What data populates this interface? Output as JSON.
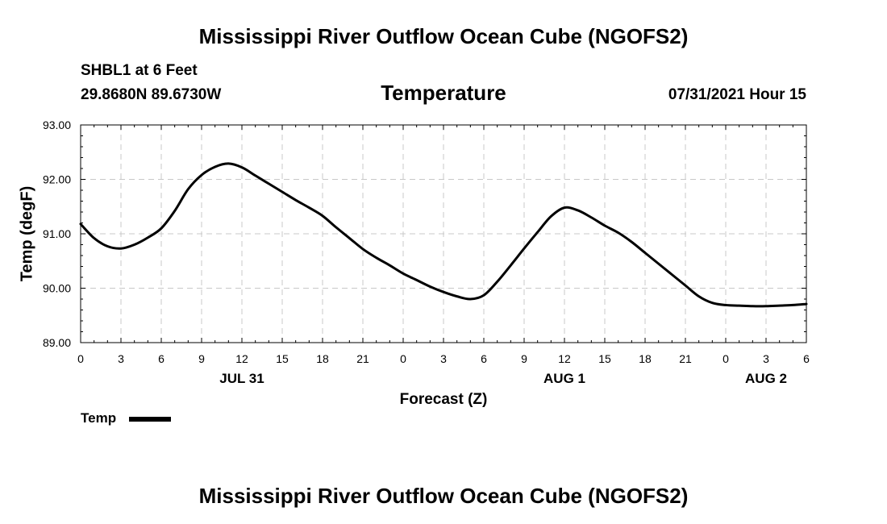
{
  "header": {
    "title": "Mississippi River Outflow Ocean Cube (NGOFS2)",
    "station": "SHBL1 at 6 Feet",
    "coordinates": "29.8680N  89.6730W",
    "subtitle": "Temperature",
    "timestamp": "07/31/2021 Hour 15"
  },
  "footer": {
    "title": "Mississippi River Outflow Ocean Cube (NGOFS2)"
  },
  "legend": {
    "label": "Temp",
    "color": "#000000"
  },
  "chart_data": {
    "type": "line",
    "title": "Temperature",
    "xlabel": "Forecast (Z)",
    "ylabel": "Temp (degF)",
    "xlim": [
      0,
      54
    ],
    "ylim": [
      89.0,
      93.0
    ],
    "grid": true,
    "x_ticks": [
      0,
      3,
      6,
      9,
      12,
      15,
      18,
      21,
      24,
      27,
      30,
      33,
      36,
      39,
      42,
      45,
      48,
      51,
      54
    ],
    "x_tick_labels": [
      "0",
      "3",
      "6",
      "9",
      "12",
      "15",
      "18",
      "21",
      "0",
      "3",
      "6",
      "9",
      "12",
      "15",
      "18",
      "21",
      "0",
      "3",
      "6"
    ],
    "y_ticks": [
      89.0,
      90.0,
      91.0,
      92.0,
      93.0
    ],
    "y_tick_labels": [
      "89.00",
      "90.00",
      "91.00",
      "92.00",
      "93.00"
    ],
    "date_labels": [
      {
        "x": 12,
        "label": "JUL 31"
      },
      {
        "x": 36,
        "label": "AUG 1"
      },
      {
        "x": 51,
        "label": "AUG 2"
      }
    ],
    "series": [
      {
        "name": "Temp",
        "color": "#000000",
        "x": [
          0,
          1,
          2,
          3,
          4,
          5,
          6,
          7,
          8,
          9,
          10,
          11,
          12,
          13,
          14,
          15,
          16,
          17,
          18,
          19,
          20,
          21,
          22,
          23,
          24,
          25,
          26,
          27,
          28,
          29,
          30,
          31,
          32,
          33,
          34,
          35,
          36,
          37,
          38,
          39,
          40,
          41,
          42,
          43,
          44,
          45,
          46,
          47,
          48,
          49,
          50,
          51,
          52,
          53,
          54
        ],
        "values": [
          91.18,
          90.92,
          90.77,
          90.73,
          90.8,
          90.93,
          91.1,
          91.42,
          91.82,
          92.08,
          92.23,
          92.29,
          92.22,
          92.07,
          91.92,
          91.77,
          91.62,
          91.48,
          91.33,
          91.12,
          90.92,
          90.72,
          90.56,
          90.42,
          90.27,
          90.15,
          90.03,
          89.93,
          89.85,
          89.8,
          89.87,
          90.12,
          90.42,
          90.73,
          91.03,
          91.32,
          91.48,
          91.43,
          91.3,
          91.15,
          91.02,
          90.85,
          90.65,
          90.45,
          90.25,
          90.05,
          89.85,
          89.73,
          89.69,
          89.68,
          89.67,
          89.67,
          89.68,
          89.69,
          89.71
        ]
      }
    ]
  }
}
